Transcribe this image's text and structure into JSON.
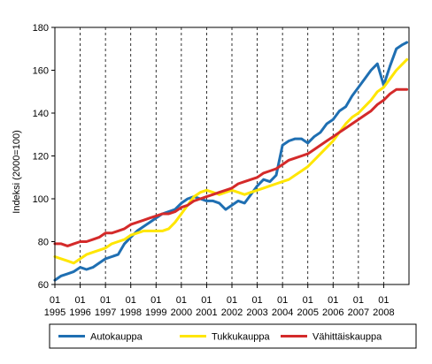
{
  "chart_data": {
    "type": "line",
    "ylabel": "Indeksi (2000=100)",
    "ylim": [
      60,
      180
    ],
    "yticks": [
      60,
      80,
      100,
      120,
      140,
      160,
      180
    ],
    "x_start": "1995-01",
    "x_end": "2008-12",
    "x_tick_month_label": "01",
    "x_tick_years": [
      "1995",
      "1996",
      "1997",
      "1998",
      "1999",
      "2000",
      "2001",
      "2002",
      "2003",
      "2004",
      "2005",
      "2006",
      "2007",
      "2008"
    ],
    "vertical_gridlines": "dashed, yearly",
    "horizontal_gridlines": false,
    "legend_position": "bottom",
    "series": [
      {
        "name": "Autokauppa",
        "color": "#1f6fb2",
        "points": [
          [
            "1995-01",
            62
          ],
          [
            "1995-04",
            64
          ],
          [
            "1995-07",
            65
          ],
          [
            "1995-10",
            66
          ],
          [
            "1996-01",
            68
          ],
          [
            "1996-04",
            67
          ],
          [
            "1996-07",
            68
          ],
          [
            "1996-10",
            70
          ],
          [
            "1997-01",
            72
          ],
          [
            "1997-04",
            73
          ],
          [
            "1997-07",
            74
          ],
          [
            "1997-10",
            79
          ],
          [
            "1998-01",
            82
          ],
          [
            "1998-04",
            85
          ],
          [
            "1998-07",
            87
          ],
          [
            "1998-10",
            89
          ],
          [
            "1999-01",
            91
          ],
          [
            "1999-04",
            93
          ],
          [
            "1999-07",
            94
          ],
          [
            "1999-10",
            95
          ],
          [
            "2000-01",
            98
          ],
          [
            "2000-04",
            100
          ],
          [
            "2000-07",
            101
          ],
          [
            "2000-10",
            100
          ],
          [
            "2001-01",
            99
          ],
          [
            "2001-04",
            99
          ],
          [
            "2001-07",
            98
          ],
          [
            "2001-10",
            95
          ],
          [
            "2002-01",
            97
          ],
          [
            "2002-04",
            99
          ],
          [
            "2002-07",
            98
          ],
          [
            "2002-10",
            102
          ],
          [
            "2003-01",
            106
          ],
          [
            "2003-04",
            109
          ],
          [
            "2003-07",
            108
          ],
          [
            "2003-10",
            111
          ],
          [
            "2004-01",
            125
          ],
          [
            "2004-04",
            127
          ],
          [
            "2004-07",
            128
          ],
          [
            "2004-10",
            128
          ],
          [
            "2005-01",
            126
          ],
          [
            "2005-04",
            129
          ],
          [
            "2005-07",
            131
          ],
          [
            "2005-10",
            135
          ],
          [
            "2006-01",
            137
          ],
          [
            "2006-04",
            141
          ],
          [
            "2006-07",
            143
          ],
          [
            "2006-10",
            148
          ],
          [
            "2007-01",
            152
          ],
          [
            "2007-04",
            156
          ],
          [
            "2007-07",
            160
          ],
          [
            "2007-10",
            163
          ],
          [
            "2008-01",
            153
          ],
          [
            "2008-04",
            162
          ],
          [
            "2008-07",
            170
          ],
          [
            "2008-10",
            172
          ],
          [
            "2008-12",
            173
          ]
        ]
      },
      {
        "name": "Tukkukauppa",
        "color": "#ffe600",
        "points": [
          [
            "1995-01",
            73
          ],
          [
            "1995-04",
            72
          ],
          [
            "1995-07",
            71
          ],
          [
            "1995-10",
            70
          ],
          [
            "1996-01",
            72
          ],
          [
            "1996-04",
            74
          ],
          [
            "1996-07",
            75
          ],
          [
            "1996-10",
            76
          ],
          [
            "1997-01",
            77
          ],
          [
            "1997-04",
            79
          ],
          [
            "1997-07",
            80
          ],
          [
            "1997-10",
            81
          ],
          [
            "1998-01",
            83
          ],
          [
            "1998-04",
            84
          ],
          [
            "1998-07",
            85
          ],
          [
            "1998-10",
            85
          ],
          [
            "1999-01",
            85
          ],
          [
            "1999-04",
            85
          ],
          [
            "1999-07",
            86
          ],
          [
            "1999-10",
            89
          ],
          [
            "2000-01",
            93
          ],
          [
            "2000-04",
            97
          ],
          [
            "2000-07",
            101
          ],
          [
            "2000-10",
            103
          ],
          [
            "2001-01",
            104
          ],
          [
            "2001-04",
            103
          ],
          [
            "2001-07",
            102
          ],
          [
            "2001-10",
            103
          ],
          [
            "2002-01",
            104
          ],
          [
            "2002-04",
            103
          ],
          [
            "2002-07",
            102
          ],
          [
            "2002-10",
            103
          ],
          [
            "2003-01",
            104
          ],
          [
            "2003-04",
            105
          ],
          [
            "2003-07",
            106
          ],
          [
            "2003-10",
            107
          ],
          [
            "2004-01",
            108
          ],
          [
            "2004-04",
            109
          ],
          [
            "2004-07",
            111
          ],
          [
            "2004-10",
            113
          ],
          [
            "2005-01",
            115
          ],
          [
            "2005-04",
            118
          ],
          [
            "2005-07",
            121
          ],
          [
            "2005-10",
            124
          ],
          [
            "2006-01",
            127
          ],
          [
            "2006-04",
            131
          ],
          [
            "2006-07",
            135
          ],
          [
            "2006-10",
            138
          ],
          [
            "2007-01",
            140
          ],
          [
            "2007-04",
            143
          ],
          [
            "2007-07",
            146
          ],
          [
            "2007-10",
            150
          ],
          [
            "2008-01",
            152
          ],
          [
            "2008-04",
            156
          ],
          [
            "2008-07",
            160
          ],
          [
            "2008-10",
            163
          ],
          [
            "2008-12",
            165
          ]
        ]
      },
      {
        "name": "Vähittäiskauppa",
        "color": "#d42a2a",
        "points": [
          [
            "1995-01",
            79
          ],
          [
            "1995-04",
            79
          ],
          [
            "1995-07",
            78
          ],
          [
            "1995-10",
            79
          ],
          [
            "1996-01",
            80
          ],
          [
            "1996-04",
            80
          ],
          [
            "1996-07",
            81
          ],
          [
            "1996-10",
            82
          ],
          [
            "1997-01",
            84
          ],
          [
            "1997-04",
            84
          ],
          [
            "1997-07",
            85
          ],
          [
            "1997-10",
            86
          ],
          [
            "1998-01",
            88
          ],
          [
            "1998-04",
            89
          ],
          [
            "1998-07",
            90
          ],
          [
            "1998-10",
            91
          ],
          [
            "1999-01",
            92
          ],
          [
            "1999-04",
            93
          ],
          [
            "1999-07",
            93
          ],
          [
            "1999-10",
            94
          ],
          [
            "2000-01",
            96
          ],
          [
            "2000-04",
            97
          ],
          [
            "2000-07",
            99
          ],
          [
            "2000-10",
            100
          ],
          [
            "2001-01",
            101
          ],
          [
            "2001-04",
            102
          ],
          [
            "2001-07",
            103
          ],
          [
            "2001-10",
            104
          ],
          [
            "2002-01",
            105
          ],
          [
            "2002-04",
            107
          ],
          [
            "2002-07",
            108
          ],
          [
            "2002-10",
            109
          ],
          [
            "2003-01",
            110
          ],
          [
            "2003-04",
            112
          ],
          [
            "2003-07",
            113
          ],
          [
            "2003-10",
            114
          ],
          [
            "2004-01",
            116
          ],
          [
            "2004-04",
            118
          ],
          [
            "2004-07",
            119
          ],
          [
            "2004-10",
            120
          ],
          [
            "2005-01",
            121
          ],
          [
            "2005-04",
            123
          ],
          [
            "2005-07",
            125
          ],
          [
            "2005-10",
            127
          ],
          [
            "2006-01",
            129
          ],
          [
            "2006-04",
            131
          ],
          [
            "2006-07",
            133
          ],
          [
            "2006-10",
            135
          ],
          [
            "2007-01",
            137
          ],
          [
            "2007-04",
            139
          ],
          [
            "2007-07",
            141
          ],
          [
            "2007-10",
            144
          ],
          [
            "2008-01",
            146
          ],
          [
            "2008-04",
            149
          ],
          [
            "2008-07",
            151
          ],
          [
            "2008-10",
            151
          ],
          [
            "2008-12",
            151
          ]
        ]
      }
    ]
  }
}
